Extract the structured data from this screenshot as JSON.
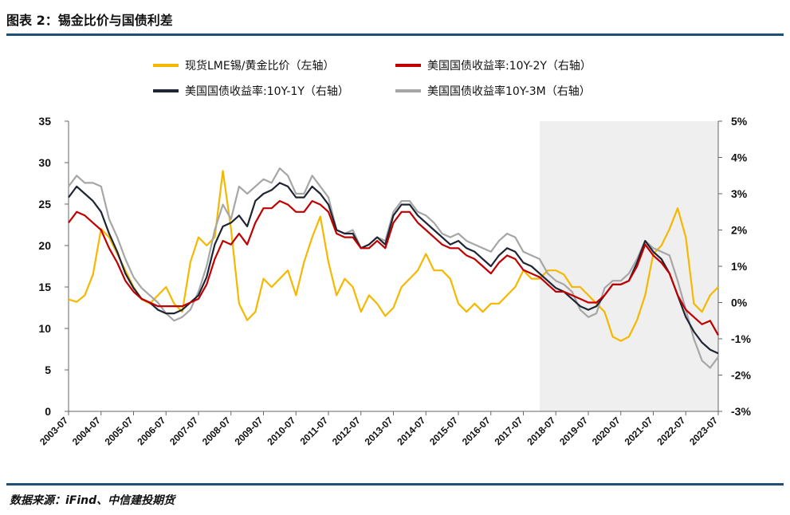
{
  "header": {
    "title": "图表 2：锡金比价与国债利差"
  },
  "footer": {
    "source": "数据来源：iFind、中信建投期货"
  },
  "chart_data": {
    "type": "line",
    "legend": [
      {
        "name": "现货LME锡/黄金比价（左轴）",
        "color": "#f5b800"
      },
      {
        "name": "美国国债收益率:10Y-2Y（右轴）",
        "color": "#c00000"
      },
      {
        "name": "美国国债收益率:10Y-1Y（右轴）",
        "color": "#1f2533"
      },
      {
        "name": "美国国债收益率10Y-3M（右轴）",
        "color": "#a6a6a6"
      }
    ],
    "left_axis": {
      "ylim": [
        0,
        35
      ],
      "ticks": [
        "0",
        "5",
        "10",
        "15",
        "20",
        "25",
        "30",
        "35"
      ]
    },
    "right_axis": {
      "ylim": [
        -3,
        5
      ],
      "ticks": [
        "-3%",
        "-2%",
        "-1%",
        "0%",
        "1%",
        "2%",
        "3%",
        "4%",
        "5%"
      ]
    },
    "x_tick_labels": [
      "2003-07",
      "2004-07",
      "2005-07",
      "2006-07",
      "2007-07",
      "2008-07",
      "2009-07",
      "2010-07",
      "2011-07",
      "2012-07",
      "2013-07",
      "2014-07",
      "2015-07",
      "2016-07",
      "2017-07",
      "2018-07",
      "2019-07",
      "2020-07",
      "2021-07",
      "2022-07",
      "2023-07"
    ],
    "shaded_region": {
      "from": "2018-01",
      "to": "2023-07",
      "color": "#efefef"
    },
    "series": [
      {
        "name": "现货LME锡/黄金比价（左轴）",
        "axis": "left",
        "color": "#f5b800",
        "x": [
          "2003-07",
          "2003-10",
          "2004-01",
          "2004-04",
          "2004-07",
          "2004-10",
          "2005-01",
          "2005-04",
          "2005-07",
          "2005-10",
          "2006-01",
          "2006-04",
          "2006-07",
          "2006-10",
          "2007-01",
          "2007-04",
          "2007-07",
          "2007-10",
          "2008-01",
          "2008-04",
          "2008-07",
          "2008-10",
          "2009-01",
          "2009-04",
          "2009-07",
          "2009-10",
          "2010-01",
          "2010-04",
          "2010-07",
          "2010-10",
          "2011-01",
          "2011-04",
          "2011-07",
          "2011-10",
          "2012-01",
          "2012-04",
          "2012-07",
          "2012-10",
          "2013-01",
          "2013-04",
          "2013-07",
          "2013-10",
          "2014-01",
          "2014-04",
          "2014-07",
          "2014-10",
          "2015-01",
          "2015-04",
          "2015-07",
          "2015-10",
          "2016-01",
          "2016-04",
          "2016-07",
          "2016-10",
          "2017-01",
          "2017-04",
          "2017-07",
          "2017-10",
          "2018-01",
          "2018-04",
          "2018-07",
          "2018-10",
          "2019-01",
          "2019-04",
          "2019-07",
          "2019-10",
          "2020-01",
          "2020-04",
          "2020-07",
          "2020-10",
          "2021-01",
          "2021-04",
          "2021-07",
          "2021-10",
          "2022-01",
          "2022-04",
          "2022-07",
          "2022-10",
          "2023-01",
          "2023-04",
          "2023-07"
        ],
        "values": [
          13.5,
          13.2,
          14,
          16.5,
          22,
          21,
          19,
          17,
          15,
          13.5,
          13,
          14,
          15,
          13,
          12,
          18,
          21,
          20,
          21,
          29,
          22,
          13,
          11,
          12,
          16,
          15,
          16,
          17,
          14,
          18,
          21,
          23.5,
          18,
          14,
          16,
          15,
          12,
          14,
          13,
          11.5,
          12.5,
          15,
          16,
          17,
          19,
          17,
          17,
          16,
          13,
          12,
          13,
          12,
          13,
          13,
          14,
          15,
          17,
          16,
          16,
          17,
          17,
          16.5,
          15,
          15,
          14,
          13,
          12,
          9,
          8.5,
          9,
          11,
          14,
          19,
          20,
          22,
          24.5,
          21,
          13,
          12,
          14,
          15
        ]
      },
      {
        "name": "美国国债收益率:10Y-2Y（右轴）",
        "axis": "right",
        "color": "#c00000",
        "x": [
          "2003-07",
          "2003-10",
          "2004-01",
          "2004-04",
          "2004-07",
          "2004-10",
          "2005-01",
          "2005-04",
          "2005-07",
          "2005-10",
          "2006-01",
          "2006-04",
          "2006-07",
          "2006-10",
          "2007-01",
          "2007-04",
          "2007-07",
          "2007-10",
          "2008-01",
          "2008-04",
          "2008-07",
          "2008-10",
          "2009-01",
          "2009-04",
          "2009-07",
          "2009-10",
          "2010-01",
          "2010-04",
          "2010-07",
          "2010-10",
          "2011-01",
          "2011-04",
          "2011-07",
          "2011-10",
          "2012-01",
          "2012-04",
          "2012-07",
          "2012-10",
          "2013-01",
          "2013-04",
          "2013-07",
          "2013-10",
          "2014-01",
          "2014-04",
          "2014-07",
          "2014-10",
          "2015-01",
          "2015-04",
          "2015-07",
          "2015-10",
          "2016-01",
          "2016-04",
          "2016-07",
          "2016-10",
          "2017-01",
          "2017-04",
          "2017-07",
          "2017-10",
          "2018-01",
          "2018-04",
          "2018-07",
          "2018-10",
          "2019-01",
          "2019-04",
          "2019-07",
          "2019-10",
          "2020-01",
          "2020-04",
          "2020-07",
          "2020-10",
          "2021-01",
          "2021-04",
          "2021-07",
          "2021-10",
          "2022-01",
          "2022-04",
          "2022-07",
          "2022-10",
          "2023-01",
          "2023-04",
          "2023-07"
        ],
        "values": [
          2.2,
          2.5,
          2.4,
          2.2,
          2.0,
          1.5,
          1.1,
          0.6,
          0.3,
          0.1,
          0.0,
          -0.1,
          -0.1,
          -0.1,
          -0.1,
          0.0,
          0.1,
          0.5,
          1.2,
          1.7,
          1.6,
          1.9,
          1.6,
          2.2,
          2.6,
          2.6,
          2.8,
          2.7,
          2.5,
          2.5,
          2.8,
          2.7,
          2.5,
          1.9,
          1.8,
          1.8,
          1.5,
          1.5,
          1.7,
          1.5,
          2.2,
          2.5,
          2.5,
          2.2,
          2.0,
          1.8,
          1.6,
          1.5,
          1.5,
          1.3,
          1.2,
          1.0,
          0.8,
          1.1,
          1.3,
          1.2,
          0.9,
          0.8,
          0.7,
          0.5,
          0.3,
          0.3,
          0.2,
          0.1,
          0.0,
          0.0,
          0.2,
          0.5,
          0.5,
          0.6,
          1.0,
          1.6,
          1.3,
          1.1,
          0.8,
          0.2,
          -0.2,
          -0.4,
          -0.6,
          -0.5,
          -0.9
        ]
      },
      {
        "name": "美国国债收益率:10Y-1Y（右轴）",
        "axis": "right",
        "color": "#1f2533",
        "x": [
          "2003-07",
          "2003-10",
          "2004-01",
          "2004-04",
          "2004-07",
          "2004-10",
          "2005-01",
          "2005-04",
          "2005-07",
          "2005-10",
          "2006-01",
          "2006-04",
          "2006-07",
          "2006-10",
          "2007-01",
          "2007-04",
          "2007-07",
          "2007-10",
          "2008-01",
          "2008-04",
          "2008-07",
          "2008-10",
          "2009-01",
          "2009-04",
          "2009-07",
          "2009-10",
          "2010-01",
          "2010-04",
          "2010-07",
          "2010-10",
          "2011-01",
          "2011-04",
          "2011-07",
          "2011-10",
          "2012-01",
          "2012-04",
          "2012-07",
          "2012-10",
          "2013-01",
          "2013-04",
          "2013-07",
          "2013-10",
          "2014-01",
          "2014-04",
          "2014-07",
          "2014-10",
          "2015-01",
          "2015-04",
          "2015-07",
          "2015-10",
          "2016-01",
          "2016-04",
          "2016-07",
          "2016-10",
          "2017-01",
          "2017-04",
          "2017-07",
          "2017-10",
          "2018-01",
          "2018-04",
          "2018-07",
          "2018-10",
          "2019-01",
          "2019-04",
          "2019-07",
          "2019-10",
          "2020-01",
          "2020-04",
          "2020-07",
          "2020-10",
          "2021-01",
          "2021-04",
          "2021-07",
          "2021-10",
          "2022-01",
          "2022-04",
          "2022-07",
          "2022-10",
          "2023-01",
          "2023-04",
          "2023-07"
        ],
        "values": [
          2.9,
          3.2,
          3.0,
          2.8,
          2.5,
          1.9,
          1.4,
          0.8,
          0.4,
          0.1,
          0.0,
          -0.2,
          -0.3,
          -0.3,
          -0.2,
          0.0,
          0.2,
          0.7,
          1.6,
          2.1,
          2.2,
          2.4,
          2.1,
          2.8,
          3.0,
          3.1,
          3.3,
          3.2,
          2.9,
          2.9,
          3.2,
          3.0,
          2.7,
          2.0,
          1.9,
          1.9,
          1.5,
          1.6,
          1.8,
          1.6,
          2.4,
          2.7,
          2.7,
          2.4,
          2.2,
          2.0,
          1.8,
          1.6,
          1.7,
          1.5,
          1.4,
          1.2,
          1.0,
          1.3,
          1.5,
          1.4,
          1.1,
          1.0,
          0.8,
          0.6,
          0.4,
          0.3,
          0.1,
          -0.1,
          -0.2,
          -0.1,
          0.2,
          0.5,
          0.5,
          0.6,
          1.1,
          1.7,
          1.4,
          1.2,
          0.8,
          0.2,
          -0.4,
          -0.8,
          -1.1,
          -1.3,
          -1.4
        ]
      },
      {
        "name": "美国国债收益率10Y-3M（右轴）",
        "axis": "right",
        "color": "#a6a6a6",
        "x": [
          "2003-07",
          "2003-10",
          "2004-01",
          "2004-04",
          "2004-07",
          "2004-10",
          "2005-01",
          "2005-04",
          "2005-07",
          "2005-10",
          "2006-01",
          "2006-04",
          "2006-07",
          "2006-10",
          "2007-01",
          "2007-04",
          "2007-07",
          "2007-10",
          "2008-01",
          "2008-04",
          "2008-07",
          "2008-10",
          "2009-01",
          "2009-04",
          "2009-07",
          "2009-10",
          "2010-01",
          "2010-04",
          "2010-07",
          "2010-10",
          "2011-01",
          "2011-04",
          "2011-07",
          "2011-10",
          "2012-01",
          "2012-04",
          "2012-07",
          "2012-10",
          "2013-01",
          "2013-04",
          "2013-07",
          "2013-10",
          "2014-01",
          "2014-04",
          "2014-07",
          "2014-10",
          "2015-01",
          "2015-04",
          "2015-07",
          "2015-10",
          "2016-01",
          "2016-04",
          "2016-07",
          "2016-10",
          "2017-01",
          "2017-04",
          "2017-07",
          "2017-10",
          "2018-01",
          "2018-04",
          "2018-07",
          "2018-10",
          "2019-01",
          "2019-04",
          "2019-07",
          "2019-10",
          "2020-01",
          "2020-04",
          "2020-07",
          "2020-10",
          "2021-01",
          "2021-04",
          "2021-07",
          "2021-10",
          "2022-01",
          "2022-04",
          "2022-07",
          "2022-10",
          "2023-01",
          "2023-04",
          "2023-07"
        ],
        "values": [
          3.2,
          3.5,
          3.3,
          3.3,
          3.2,
          2.3,
          1.8,
          1.2,
          0.7,
          0.4,
          0.2,
          0.0,
          -0.3,
          -0.5,
          -0.4,
          -0.2,
          0.3,
          1.0,
          2.0,
          2.7,
          2.3,
          3.2,
          3.0,
          3.2,
          3.4,
          3.3,
          3.7,
          3.5,
          3.0,
          3.0,
          3.5,
          3.2,
          2.9,
          2.0,
          1.9,
          2.0,
          1.5,
          1.6,
          1.8,
          1.7,
          2.5,
          2.8,
          2.8,
          2.5,
          2.4,
          2.2,
          1.9,
          1.8,
          1.9,
          1.7,
          1.6,
          1.5,
          1.4,
          1.7,
          1.9,
          1.8,
          1.4,
          1.3,
          1.2,
          0.8,
          0.6,
          0.5,
          0.3,
          -0.2,
          -0.4,
          -0.3,
          0.4,
          0.6,
          0.6,
          0.8,
          1.2,
          1.7,
          1.5,
          1.4,
          1.3,
          0.6,
          -0.2,
          -1.0,
          -1.6,
          -1.8,
          -1.5
        ]
      }
    ]
  }
}
